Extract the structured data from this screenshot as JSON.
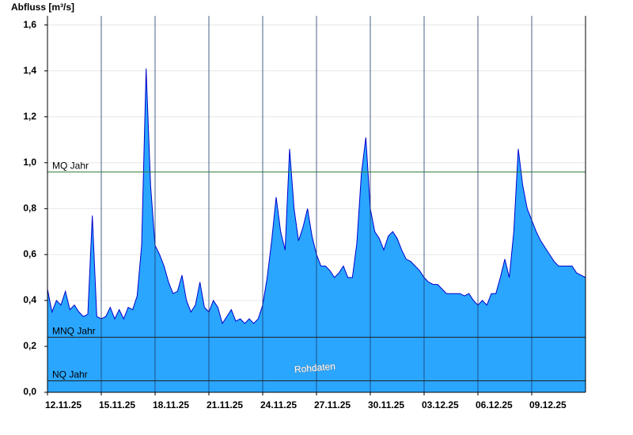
{
  "chart_data": {
    "type": "area",
    "title": "Abfluss [m³/s]",
    "watermark": "Rohdaten",
    "color": "#2aa6ff",
    "line_color": "#0000cc",
    "categories": [
      "12.11.25",
      null,
      null,
      null,
      null,
      null,
      null,
      null,
      null,
      null,
      null,
      null,
      "15.11.25",
      null,
      null,
      null,
      null,
      null,
      null,
      null,
      null,
      null,
      null,
      null,
      "18.11.25",
      null,
      null,
      null,
      null,
      null,
      null,
      null,
      null,
      null,
      null,
      null,
      "21.11.25",
      null,
      null,
      null,
      null,
      null,
      null,
      null,
      null,
      null,
      null,
      null,
      "24.11.25",
      null,
      null,
      null,
      null,
      null,
      null,
      null,
      null,
      null,
      null,
      null,
      "27.11.25",
      null,
      null,
      null,
      null,
      null,
      null,
      null,
      null,
      null,
      null,
      null,
      "30.11.25",
      null,
      null,
      null,
      null,
      null,
      null,
      null,
      null,
      null,
      null,
      null,
      "03.12.25",
      null,
      null,
      null,
      null,
      null,
      null,
      null,
      null,
      null,
      null,
      null,
      "06.12.25",
      null,
      null,
      null,
      null,
      null,
      null,
      null,
      null,
      null,
      null,
      null,
      "09.12.25",
      null,
      null,
      null,
      null,
      null,
      null,
      null,
      null,
      null,
      null,
      null,
      null
    ],
    "values": [
      0.45,
      0.35,
      0.4,
      0.38,
      0.44,
      0.36,
      0.38,
      0.35,
      0.33,
      0.34,
      0.77,
      0.33,
      0.32,
      0.33,
      0.37,
      0.32,
      0.36,
      0.32,
      0.37,
      0.36,
      0.42,
      0.64,
      1.41,
      0.9,
      0.64,
      0.6,
      0.55,
      0.48,
      0.43,
      0.44,
      0.51,
      0.4,
      0.35,
      0.38,
      0.48,
      0.37,
      0.35,
      0.4,
      0.37,
      0.3,
      0.33,
      0.36,
      0.31,
      0.32,
      0.3,
      0.32,
      0.3,
      0.32,
      0.38,
      0.5,
      0.66,
      0.85,
      0.7,
      0.62,
      1.06,
      0.8,
      0.66,
      0.72,
      0.8,
      0.68,
      0.6,
      0.55,
      0.55,
      0.53,
      0.5,
      0.52,
      0.55,
      0.5,
      0.5,
      0.65,
      0.95,
      1.11,
      0.8,
      0.7,
      0.67,
      0.62,
      0.68,
      0.7,
      0.67,
      0.62,
      0.58,
      0.57,
      0.55,
      0.53,
      0.5,
      0.48,
      0.47,
      0.47,
      0.45,
      0.43,
      0.43,
      0.43,
      0.43,
      0.42,
      0.43,
      0.4,
      0.38,
      0.4,
      0.38,
      0.43,
      0.43,
      0.5,
      0.58,
      0.5,
      0.7,
      1.06,
      0.9,
      0.8,
      0.75,
      0.7,
      0.66,
      0.63,
      0.6,
      0.57,
      0.55,
      0.55,
      0.55,
      0.55,
      0.52,
      0.51,
      0.5
    ],
    "ylim": [
      0,
      1.64
    ],
    "yticks": [
      {
        "value": 0,
        "label": "0,0"
      },
      {
        "value": 0.2,
        "label": "0,2"
      },
      {
        "value": 0.4,
        "label": "0,4"
      },
      {
        "value": 0.6,
        "label": "0,6"
      },
      {
        "value": 0.8,
        "label": "0,8"
      },
      {
        "value": 1,
        "label": "1,0"
      },
      {
        "value": 1.2,
        "label": "1,2"
      },
      {
        "value": 1.4,
        "label": "1,4"
      },
      {
        "value": 1.6,
        "label": "1,6"
      }
    ],
    "grid": true,
    "reference_lines": [
      {
        "name": "MQ Jahr",
        "value": 0.96,
        "color": "#2e7d32"
      },
      {
        "name": "MNQ Jahr",
        "value": 0.24,
        "color": "#222222"
      },
      {
        "name": "NQ Jahr",
        "value": 0.05,
        "color": "#222222"
      }
    ]
  }
}
